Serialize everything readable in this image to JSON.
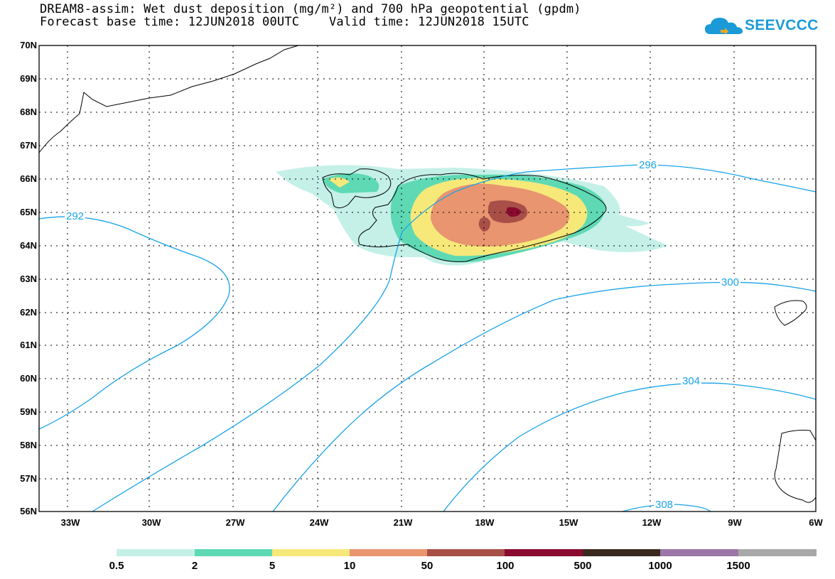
{
  "title": {
    "line1": "DREAM8-assim: Wet dust deposition (mg/m²) and 700 hPa geopotential (gpdm)",
    "line2": "Forecast base time: 12JUN2018 00UTC    Valid time: 12JUN2018 15UTC"
  },
  "logo": {
    "text": "SEEVCCC",
    "icon": "cloud-logo-icon"
  },
  "map": {
    "projection": "lat-lon",
    "lat_range": [
      56,
      70
    ],
    "lon_range": [
      -34.5,
      -6
    ],
    "lat_labels": [
      "70N",
      "69N",
      "68N",
      "67N",
      "66N",
      "65N",
      "64N",
      "63N",
      "62N",
      "61N",
      "60N",
      "59N",
      "58N",
      "57N",
      "56N"
    ],
    "lon_labels": [
      "33W",
      "30W",
      "27W",
      "24W",
      "21W",
      "18W",
      "15W",
      "12W",
      "9W",
      "6W"
    ],
    "contour_color": "#1aa3e8",
    "contour_labels": [
      "292",
      "296",
      "300",
      "304",
      "308"
    ]
  },
  "legend": {
    "colors": [
      "#c4f0e8",
      "#5ed9b3",
      "#f7e87a",
      "#e89570",
      "#a85048",
      "#8a0a30",
      "#3a2a1e",
      "#9a77a8",
      "#a8a8a8"
    ],
    "labels": [
      "0.5",
      "2",
      "5",
      "10",
      "50",
      "100",
      "500",
      "1000",
      "1500"
    ]
  }
}
